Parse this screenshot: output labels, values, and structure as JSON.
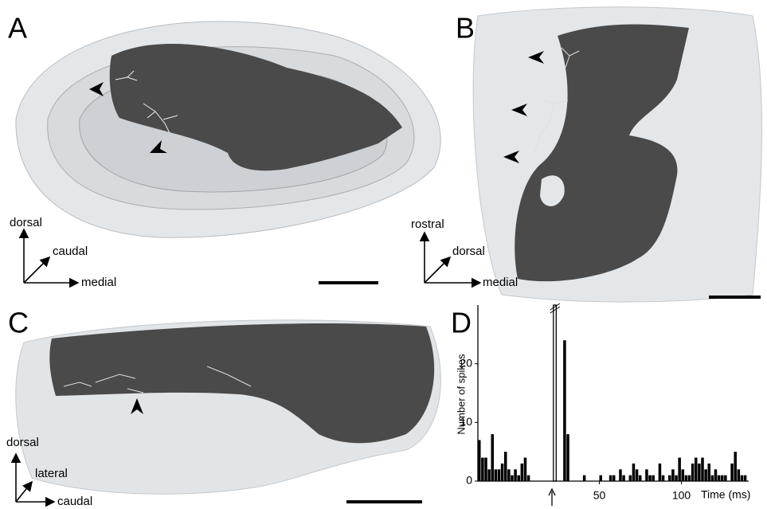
{
  "panels": [
    {
      "letter": "A",
      "axes": [
        "dorsal",
        "caudal",
        "medial"
      ]
    },
    {
      "letter": "B",
      "axes": [
        "rostral",
        "dorsal",
        "medial"
      ]
    },
    {
      "letter": "C",
      "axes": [
        "dorsal",
        "lateral",
        "caudal"
      ]
    },
    {
      "letter": "D"
    }
  ],
  "chart_data": {
    "type": "histogram",
    "xlabel": "Time (ms)",
    "ylabel": "Number of spikes",
    "color": "#000000",
    "bins": [
      -24,
      -22,
      -20,
      -18,
      -16,
      -14,
      -12,
      -10,
      -8,
      -6,
      -4,
      -2,
      0,
      2,
      4,
      6,
      8,
      10,
      12,
      14,
      16,
      18,
      20,
      22,
      24,
      26,
      28,
      30,
      32,
      34,
      36,
      38,
      40,
      42,
      44,
      46,
      48,
      50,
      52,
      54,
      56,
      58,
      60,
      62,
      64,
      66,
      68,
      70,
      72,
      74,
      76,
      78,
      80,
      82,
      84,
      86,
      88,
      90,
      92,
      94,
      96,
      98,
      100,
      102,
      104,
      106,
      108,
      110,
      112,
      114,
      116,
      118,
      120,
      122,
      124,
      126,
      128,
      130,
      132,
      134,
      136,
      138,
      140
    ],
    "values": [
      7,
      4,
      4,
      2,
      8,
      2,
      2,
      3,
      5,
      2,
      1,
      2,
      1,
      3,
      4,
      1,
      0,
      0,
      0,
      0,
      0,
      0,
      0,
      30,
      0,
      0,
      24,
      8,
      0,
      0,
      0,
      0,
      1,
      0,
      0,
      0,
      0,
      1,
      0,
      0,
      1,
      1,
      0,
      2,
      1,
      0,
      1,
      3,
      2,
      1,
      0,
      2,
      1,
      1,
      0,
      3,
      1,
      0,
      1,
      2,
      1,
      4,
      2,
      1,
      1,
      3,
      4,
      3,
      4,
      2,
      3,
      1,
      2,
      1,
      1,
      1,
      0,
      3,
      5,
      2,
      1,
      1
    ],
    "xlim": [
      -24,
      141
    ],
    "ylim": [
      0,
      30
    ],
    "xticks": [
      50,
      100
    ],
    "yticks": [
      0,
      10,
      20
    ]
  }
}
